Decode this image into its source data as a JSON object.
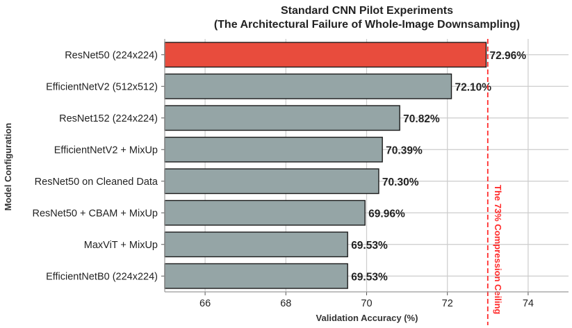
{
  "chart_data": {
    "type": "bar",
    "orientation": "horizontal",
    "title": "Standard CNN Pilot Experiments",
    "subtitle": "(The Architectural Failure of Whole-Image Downsampling)",
    "xlabel": "Validation Accuracy (%)",
    "ylabel": "Model Configuration",
    "xlim": [
      65,
      75
    ],
    "xticks": [
      "66",
      "68",
      "70",
      "72",
      "74"
    ],
    "grid": true,
    "categories": [
      "ResNet50 (224x224)",
      "EfficientNetV2 (512x512)",
      "ResNet152 (224x224)",
      "EfficientNetV2 + MixUp",
      "ResNet50 on Cleaned Data",
      "ResNet50 + CBAM + MixUp",
      "MaxViT + MixUp",
      "EfficientNetB0 (224x224)"
    ],
    "values": [
      72.96,
      72.1,
      70.82,
      70.39,
      70.3,
      69.96,
      69.53,
      69.53
    ],
    "value_labels": [
      "72.96%",
      "72.10%",
      "70.82%",
      "70.39%",
      "70.30%",
      "69.96%",
      "69.53%",
      "69.53%"
    ],
    "highlight_index": 0,
    "colors": {
      "highlight": "#e84c3d",
      "default": "#95a5a6",
      "reference": "#ff2a2a",
      "grid": "#cccccc"
    },
    "reference_line": {
      "value": 73,
      "label": "The 73% Compression Ceiling"
    }
  }
}
